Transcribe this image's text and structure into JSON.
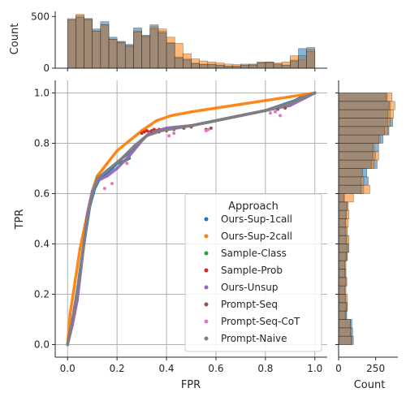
{
  "chart_data": {
    "type": "scatter",
    "xlabel": "FPR",
    "ylabel": "TPR",
    "xlim": [
      -0.05,
      1.05
    ],
    "ylim": [
      -0.05,
      1.05
    ],
    "xticks": [
      {
        "v": 0.0,
        "label": "0.0"
      },
      {
        "v": 0.2,
        "label": "0.2"
      },
      {
        "v": 0.4,
        "label": "0.4"
      },
      {
        "v": 0.6,
        "label": "0.6"
      },
      {
        "v": 0.8,
        "label": "0.8"
      },
      {
        "v": 1.0,
        "label": "1.0"
      }
    ],
    "yticks": [
      {
        "v": 0.0,
        "label": "0.0"
      },
      {
        "v": 0.2,
        "label": "0.2"
      },
      {
        "v": 0.4,
        "label": "0.4"
      },
      {
        "v": 0.6,
        "label": "0.6"
      },
      {
        "v": 0.8,
        "label": "0.8"
      },
      {
        "v": 1.0,
        "label": "1.0"
      }
    ],
    "grid": true,
    "legend": {
      "title": "Approach",
      "placement": "lower-right"
    },
    "series": [
      {
        "name": "Ours-Sup-1call",
        "color": "#1f77b4",
        "style": "dense",
        "x": [
          0.0,
          0.01,
          0.03,
          0.06,
          0.09,
          0.11,
          0.13,
          0.18,
          0.22,
          0.27,
          0.31,
          0.33,
          0.4,
          0.5,
          0.6,
          0.7,
          0.8,
          0.86,
          0.92,
          0.96,
          1.0
        ],
        "y": [
          0.0,
          0.05,
          0.15,
          0.36,
          0.55,
          0.62,
          0.66,
          0.7,
          0.74,
          0.78,
          0.82,
          0.84,
          0.86,
          0.87,
          0.89,
          0.91,
          0.93,
          0.95,
          0.97,
          0.99,
          1.0
        ]
      },
      {
        "name": "Ours-Sup-2call",
        "color": "#ff7f0e",
        "style": "dense",
        "x": [
          0.0,
          0.01,
          0.03,
          0.05,
          0.08,
          0.1,
          0.12,
          0.16,
          0.2,
          0.25,
          0.3,
          0.36,
          0.42,
          0.5,
          0.6,
          0.7,
          0.8,
          0.9,
          1.0
        ],
        "y": [
          0.0,
          0.12,
          0.25,
          0.38,
          0.52,
          0.61,
          0.67,
          0.72,
          0.77,
          0.81,
          0.85,
          0.89,
          0.91,
          0.925,
          0.94,
          0.955,
          0.97,
          0.985,
          1.0
        ]
      },
      {
        "name": "Sample-Class",
        "color": "#2ca02c",
        "style": "dense",
        "x": [
          0.21,
          0.22,
          0.23,
          0.24,
          0.25
        ],
        "y": [
          0.72,
          0.725,
          0.73,
          0.735,
          0.74
        ]
      },
      {
        "name": "Sample-Prob",
        "color": "#d62728",
        "style": "points",
        "x": [
          0.3,
          0.31,
          0.32,
          0.33,
          0.34,
          0.35,
          0.36,
          0.37
        ],
        "y": [
          0.84,
          0.845,
          0.85,
          0.845,
          0.85,
          0.855,
          0.85,
          0.855
        ]
      },
      {
        "name": "Ours-Unsup",
        "color": "#9467bd",
        "style": "dense",
        "x": [
          0.0,
          0.02,
          0.04,
          0.06,
          0.08,
          0.1,
          0.12,
          0.16,
          0.2,
          0.25,
          0.3,
          0.33,
          0.4,
          0.5,
          0.6,
          0.7,
          0.8,
          0.9,
          0.96,
          1.0
        ],
        "y": [
          0.0,
          0.08,
          0.18,
          0.35,
          0.52,
          0.61,
          0.65,
          0.67,
          0.7,
          0.75,
          0.81,
          0.84,
          0.86,
          0.87,
          0.89,
          0.91,
          0.93,
          0.95,
          0.98,
          1.0
        ]
      },
      {
        "name": "Prompt-Seq",
        "color": "#8c564b",
        "style": "points",
        "x": [
          0.34,
          0.37,
          0.4,
          0.43,
          0.47,
          0.5,
          0.56,
          0.58,
          0.8,
          0.85,
          0.88
        ],
        "y": [
          0.84,
          0.845,
          0.85,
          0.855,
          0.86,
          0.865,
          0.855,
          0.86,
          0.93,
          0.935,
          0.94
        ]
      },
      {
        "name": "Prompt-Seq-CoT",
        "color": "#e377c2",
        "style": "points",
        "x": [
          0.06,
          0.09,
          0.15,
          0.18,
          0.24,
          0.41,
          0.43,
          0.56,
          0.57,
          0.82,
          0.84,
          0.86
        ],
        "y": [
          0.35,
          0.55,
          0.62,
          0.64,
          0.72,
          0.83,
          0.84,
          0.85,
          0.855,
          0.92,
          0.925,
          0.91
        ]
      },
      {
        "name": "Prompt-Naive",
        "color": "#7f7f7f",
        "style": "dense",
        "x": [
          0.0,
          0.02,
          0.05,
          0.08,
          0.1,
          0.12,
          0.17,
          0.22,
          0.27,
          0.32,
          0.38,
          0.5,
          0.65,
          0.8,
          0.9,
          1.0
        ],
        "y": [
          0.0,
          0.1,
          0.28,
          0.5,
          0.6,
          0.66,
          0.7,
          0.74,
          0.79,
          0.83,
          0.85,
          0.87,
          0.9,
          0.93,
          0.96,
          1.0
        ]
      }
    ],
    "top_hist": {
      "ylabel": "Count",
      "ylim": [
        0,
        550
      ],
      "yticks": [
        {
          "v": 0,
          "label": "0"
        },
        {
          "v": 500,
          "label": "500"
        }
      ],
      "bin_count": 30,
      "series": [
        {
          "name": "Ours-Sup-1call",
          "color": "#1f77b4",
          "values": [
            470,
            510,
            480,
            380,
            450,
            300,
            260,
            230,
            390,
            320,
            420,
            360,
            250,
            110,
            90,
            50,
            40,
            40,
            30,
            20,
            20,
            30,
            35,
            55,
            60,
            40,
            30,
            80,
            190,
            200
          ]
        },
        {
          "name": "Ours-Sup-2call",
          "color": "#ff7f0e",
          "values": [
            480,
            520,
            480,
            360,
            420,
            280,
            250,
            210,
            360,
            310,
            400,
            380,
            300,
            240,
            140,
            90,
            70,
            60,
            50,
            40,
            35,
            40,
            40,
            60,
            60,
            50,
            60,
            120,
            80,
            180
          ]
        },
        {
          "name": "Prompt-Naive",
          "color": "#7f7f7f",
          "values": [
            470,
            490,
            470,
            360,
            420,
            280,
            250,
            220,
            350,
            300,
            380,
            340,
            240,
            100,
            80,
            45,
            35,
            35,
            30,
            20,
            20,
            30,
            30,
            50,
            55,
            40,
            30,
            70,
            120,
            160
          ]
        }
      ]
    },
    "right_hist": {
      "xlabel": "Count",
      "xlim": [
        0,
        400
      ],
      "xticks": [
        {
          "v": 0,
          "label": "0"
        },
        {
          "v": 250,
          "label": "250"
        }
      ],
      "bin_count": 30,
      "series": [
        {
          "name": "Ours-Sup-1call",
          "color": "#1f77b4",
          "values": [
            100,
            95,
            90,
            55,
            60,
            50,
            45,
            55,
            50,
            45,
            60,
            70,
            60,
            55,
            50,
            55,
            60,
            40,
            170,
            200,
            190,
            260,
            250,
            270,
            300,
            340,
            365,
            350,
            350,
            330
          ]
        },
        {
          "name": "Ours-Sup-2call",
          "color": "#ff7f0e",
          "values": [
            90,
            85,
            80,
            50,
            55,
            60,
            50,
            55,
            45,
            50,
            55,
            65,
            70,
            60,
            65,
            70,
            65,
            100,
            210,
            170,
            160,
            240,
            270,
            240,
            280,
            330,
            350,
            370,
            380,
            360
          ]
        },
        {
          "name": "Prompt-Naive",
          "color": "#7f7f7f",
          "values": [
            85,
            80,
            80,
            45,
            50,
            45,
            40,
            45,
            40,
            40,
            50,
            55,
            50,
            45,
            45,
            50,
            55,
            35,
            150,
            150,
            160,
            220,
            230,
            230,
            270,
            310,
            330,
            330,
            340,
            320
          ]
        }
      ]
    }
  }
}
